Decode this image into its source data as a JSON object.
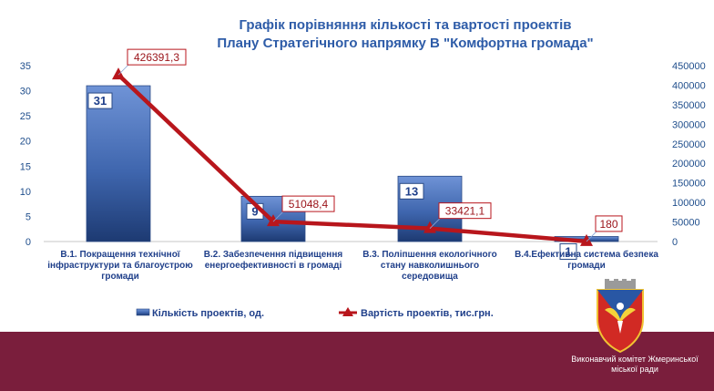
{
  "chart_data": {
    "type": "bar",
    "title": "Графік порівняння кількості та вартості проектів Плану Стратегічного напрямку В \"Комфортна громада\"",
    "title_lines": [
      "Графік порівняння кількості та вартості проектів",
      "Плану Стратегічного напрямку В \"Комфортна громада\""
    ],
    "categories": [
      "В.1. Покращення технічної інфраструктури та благоустрою громади",
      "В.2. Забезпечення підвищення енергоефективності в громаді",
      "В.3. Поліпшення екологічного стану навколишнього середовища",
      "В.4.Ефективна  система безпека громади"
    ],
    "category_lines": [
      [
        "В.1. Покращення технічної",
        "інфраструктури та благоустрою",
        "громади"
      ],
      [
        "В.2. Забезпечення підвищення",
        "енергоефективності в громаді"
      ],
      [
        "В.3. Поліпшення екологічного",
        "стану навколишнього",
        "середовища"
      ],
      [
        "В.4.Ефективна  система безпека",
        "громади"
      ]
    ],
    "series": [
      {
        "name": "Кількість проектів, од.",
        "type": "bar",
        "axis": "left",
        "values": [
          31,
          9,
          13,
          1
        ],
        "labels": [
          "31",
          "9",
          "13",
          "1"
        ]
      },
      {
        "name": "Вартість проектів, тис.грн.",
        "type": "line",
        "axis": "right",
        "values": [
          426391.3,
          51048.4,
          33421.1,
          180
        ],
        "labels": [
          "426391,3",
          "51048,4",
          "33421,1",
          "180"
        ]
      }
    ],
    "ylim_left": [
      0,
      35
    ],
    "yticks_left": [
      0,
      5,
      10,
      15,
      20,
      25,
      30,
      35
    ],
    "ylim_right": [
      0,
      450000
    ],
    "yticks_right": [
      0,
      50000,
      100000,
      150000,
      200000,
      250000,
      300000,
      350000,
      400000,
      450000
    ],
    "grid": false,
    "legend_position": "bottom",
    "colors": {
      "bar": "#4f77c0",
      "bar_dark": "#223f7a",
      "line": "#b8161c",
      "title": "#2e5ca8",
      "axis_text": "#1f4e8c",
      "label_text": "#1f3f8a"
    }
  },
  "footer": {
    "org_line1": "Виконавчий комітет Жмеринської",
    "org_line2": "міської ради",
    "band_color": "#7a1e3c"
  }
}
